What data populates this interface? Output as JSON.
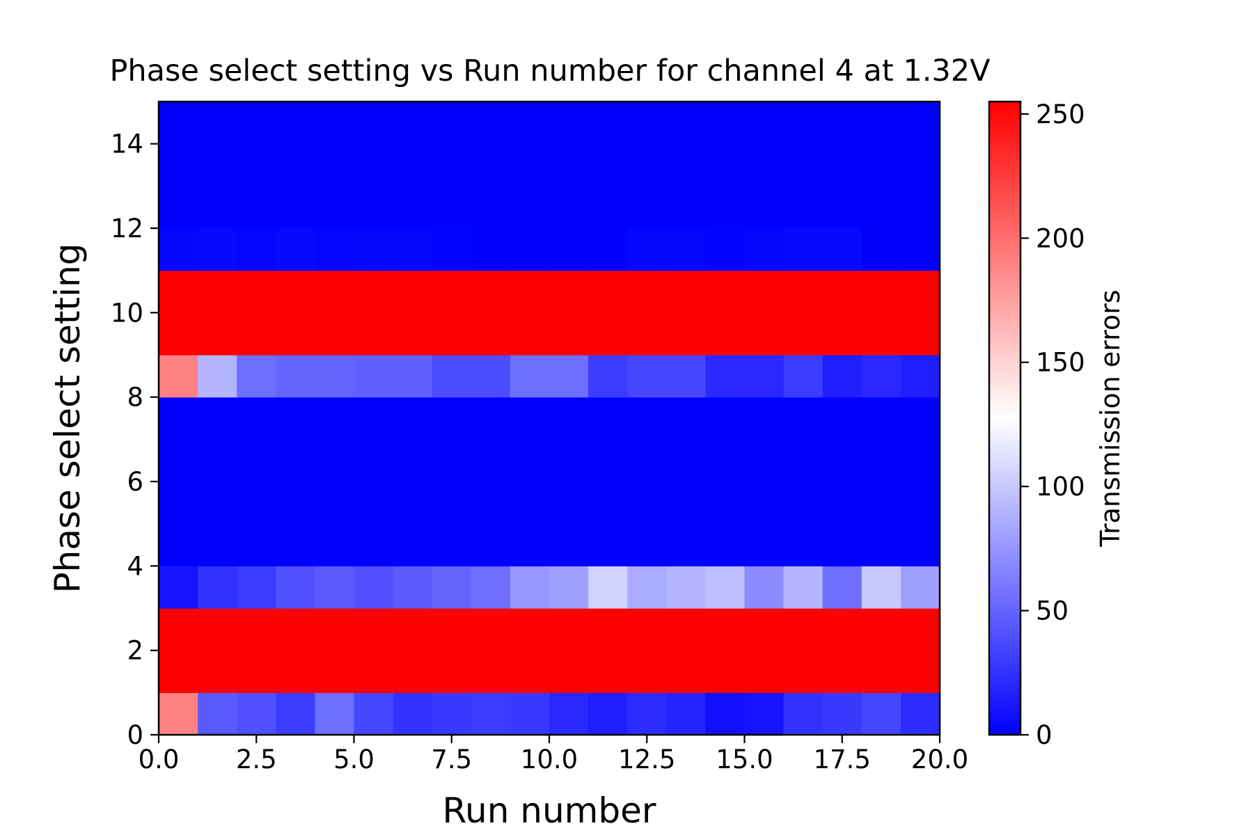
{
  "chart_data": {
    "type": "heatmap",
    "title": "Phase select setting vs Run number for channel 4 at 1.32V",
    "xlabel": "Run number",
    "ylabel": "Phase select setting",
    "xlim": [
      0,
      20
    ],
    "ylim": [
      0,
      15
    ],
    "x_ticks": [
      {
        "value": 0,
        "label": "0.0"
      },
      {
        "value": 2.5,
        "label": "2.5"
      },
      {
        "value": 5,
        "label": "5.0"
      },
      {
        "value": 7.5,
        "label": "7.5"
      },
      {
        "value": 10,
        "label": "10.0"
      },
      {
        "value": 12.5,
        "label": "12.5"
      },
      {
        "value": 15,
        "label": "15.0"
      },
      {
        "value": 17.5,
        "label": "17.5"
      },
      {
        "value": 20,
        "label": "20.0"
      }
    ],
    "y_ticks": [
      {
        "value": 0,
        "label": "0"
      },
      {
        "value": 2,
        "label": "2"
      },
      {
        "value": 4,
        "label": "4"
      },
      {
        "value": 6,
        "label": "6"
      },
      {
        "value": 8,
        "label": "8"
      },
      {
        "value": 10,
        "label": "10"
      },
      {
        "value": 12,
        "label": "12"
      },
      {
        "value": 14,
        "label": "14"
      }
    ],
    "colorbar": {
      "label": "Transmission errors",
      "range": [
        0,
        255
      ],
      "colormap": "bwr",
      "low_color": "#0000ff",
      "mid_color": "#ffffff",
      "high_color": "#ff0000",
      "ticks": [
        {
          "value": 0,
          "label": "0"
        },
        {
          "value": 50,
          "label": "50"
        },
        {
          "value": 100,
          "label": "100"
        },
        {
          "value": 150,
          "label": "150"
        },
        {
          "value": 200,
          "label": "200"
        },
        {
          "value": 250,
          "label": "250"
        }
      ]
    },
    "bands": [
      {
        "y0": 0,
        "y1": 1,
        "values": [
          190,
          45,
          40,
          30,
          55,
          35,
          25,
          28,
          30,
          28,
          20,
          15,
          22,
          18,
          8,
          10,
          25,
          28,
          35,
          22
        ]
      },
      {
        "y0": 1,
        "y1": 3,
        "values": [
          255,
          255,
          255,
          255,
          255,
          255,
          255,
          255,
          255,
          255,
          255,
          255,
          255,
          255,
          255,
          255,
          255,
          255,
          255,
          255
        ]
      },
      {
        "y0": 3,
        "y1": 4,
        "values": [
          10,
          25,
          30,
          40,
          45,
          40,
          45,
          50,
          55,
          75,
          80,
          105,
          85,
          90,
          95,
          70,
          90,
          55,
          100,
          80
        ]
      },
      {
        "y0": 4,
        "y1": 8,
        "values": [
          0,
          0,
          0,
          0,
          0,
          0,
          0,
          0,
          0,
          0,
          0,
          0,
          0,
          0,
          0,
          0,
          0,
          0,
          0,
          0
        ]
      },
      {
        "y0": 8,
        "y1": 9,
        "values": [
          190,
          90,
          55,
          50,
          50,
          48,
          48,
          38,
          38,
          55,
          55,
          30,
          35,
          35,
          20,
          20,
          30,
          15,
          20,
          15
        ]
      },
      {
        "y0": 9,
        "y1": 11,
        "values": [
          255,
          255,
          255,
          255,
          255,
          255,
          255,
          255,
          255,
          255,
          255,
          255,
          255,
          255,
          255,
          255,
          255,
          255,
          255,
          255
        ]
      },
      {
        "y0": 11,
        "y1": 12,
        "values": [
          3,
          4,
          2,
          4,
          2,
          3,
          3,
          1,
          0,
          0,
          0,
          0,
          3,
          3,
          1,
          3,
          4,
          4,
          0,
          0
        ]
      },
      {
        "y0": 12,
        "y1": 15,
        "values": [
          0,
          0,
          0,
          0,
          0,
          0,
          0,
          0,
          0,
          0,
          0,
          0,
          0,
          0,
          0,
          0,
          0,
          0,
          0,
          0
        ]
      }
    ]
  }
}
